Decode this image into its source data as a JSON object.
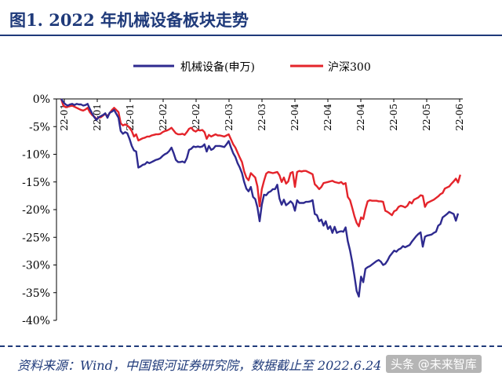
{
  "figure": {
    "title": "图1. 2022 年机械设备板块走势",
    "source": "资料来源：Wind，中国银河证券研究院，数据截止至 2022.6.24",
    "watermark": "头条 @未来智库"
  },
  "colors": {
    "series_machinery": "#2e2a8f",
    "series_hs300": "#e4242b",
    "axis": "#000000",
    "title": "#1f3a7a"
  },
  "chart_data": {
    "type": "line",
    "title": "",
    "xlabel": "",
    "ylabel": "",
    "ylim": [
      -40,
      0
    ],
    "yticks": [
      "0%",
      "-5%",
      "-10%",
      "-15%",
      "-20%",
      "-25%",
      "-30%",
      "-35%",
      "-40%"
    ],
    "ytick_values": [
      0,
      -5,
      -10,
      -15,
      -20,
      -25,
      -30,
      -35,
      -40
    ],
    "xticks": [
      "22-01",
      "22-01",
      "22-01",
      "22-02",
      "22-02",
      "22-03",
      "22-03",
      "22-04",
      "22-04",
      "22-04",
      "22-05",
      "22-05",
      "22-06"
    ],
    "grid": false,
    "legend_position": "top-center",
    "series": [
      {
        "name": "机械设备(申万)",
        "values": [
          0.0,
          -0.6,
          -1.0,
          -1.2,
          -1.0,
          -0.9,
          -1.1,
          -0.9,
          -1.0,
          -1.0,
          -1.2,
          -1.1,
          -0.9,
          -1.8,
          -2.6,
          -3.3,
          -3.8,
          -3.3,
          -3.1,
          -2.9,
          -2.6,
          -3.4,
          -2.5,
          -2.3,
          -2.0,
          -2.7,
          -3.4,
          -5.8,
          -6.3,
          -6.0,
          -6.2,
          -7.2,
          -8.5,
          -9.3,
          -9.5,
          -12.4,
          -12.2,
          -11.9,
          -11.8,
          -11.4,
          -11.6,
          -11.4,
          -11.2,
          -11.0,
          -10.9,
          -10.7,
          -10.3,
          -10.0,
          -9.8,
          -9.4,
          -8.8,
          -9.8,
          -11.0,
          -11.4,
          -11.4,
          -11.3,
          -11.5,
          -10.7,
          -9.2,
          -9.0,
          -8.6,
          -8.7,
          -8.6,
          -8.7,
          -8.6,
          -8.2,
          -9.5,
          -8.5,
          -9.2,
          -9.0,
          -8.5,
          -8.5,
          -8.5,
          -8.6,
          -8.7,
          -8.2,
          -7.6,
          -8.8,
          -9.8,
          -10.5,
          -11.6,
          -12.4,
          -13.4,
          -15.0,
          -16.2,
          -16.7,
          -15.9,
          -17.7,
          -18.1,
          -19.6,
          -22.1,
          -19.1,
          -17.3,
          -17.4,
          -16.9,
          -16.7,
          -16.3,
          -16.3,
          -15.5,
          -18.0,
          -19.1,
          -18.2,
          -19.2,
          -18.9,
          -18.5,
          -18.9,
          -20.2,
          -18.3,
          -18.8,
          -18.8,
          -18.8,
          -18.6,
          -18.6,
          -18.5,
          -18.3,
          -20.8,
          -21.0,
          -22.1,
          -21.8,
          -22.9,
          -22.1,
          -23.5,
          -23.0,
          -24.2,
          -23.1,
          -24.2,
          -24.0,
          -23.9,
          -24.0,
          -23.2,
          -25.7,
          -27.4,
          -29.5,
          -32.0,
          -34.7,
          -35.7,
          -32.1,
          -33.1,
          -30.7,
          -30.4,
          -30.2,
          -29.9,
          -29.6,
          -29.3,
          -29.1,
          -29.4,
          -30.0,
          -29.8,
          -29.2,
          -28.4,
          -27.9,
          -27.4,
          -27.6,
          -27.2,
          -27.0,
          -26.6,
          -26.8,
          -26.6,
          -26.4,
          -25.8,
          -25.3,
          -24.8,
          -24.4,
          -24.1,
          -26.7,
          -24.9,
          -24.7,
          -24.6,
          -24.5,
          -24.2,
          -24.0,
          -22.9,
          -22.6,
          -21.4,
          -21.1,
          -20.8,
          -20.4,
          -20.6,
          -20.8,
          -22.0,
          -20.7
        ]
      },
      {
        "name": "沪深300",
        "values": [
          0.0,
          -1.2,
          -1.5,
          -1.4,
          -1.3,
          -1.2,
          -1.4,
          -1.6,
          -1.8,
          -2.0,
          -2.1,
          -1.9,
          -1.6,
          -2.4,
          -2.9,
          -3.2,
          -3.6,
          -3.4,
          -3.3,
          -3.0,
          -2.7,
          -3.1,
          -2.6,
          -2.0,
          -1.6,
          -2.0,
          -2.4,
          -4.4,
          -4.8,
          -4.6,
          -4.8,
          -5.2,
          -5.8,
          -6.8,
          -6.4,
          -7.5,
          -7.3,
          -7.1,
          -7.0,
          -6.8,
          -6.8,
          -6.6,
          -6.5,
          -6.4,
          -6.4,
          -6.3,
          -6.0,
          -5.8,
          -5.7,
          -5.5,
          -5.2,
          -5.7,
          -6.2,
          -6.4,
          -6.4,
          -6.3,
          -6.5,
          -6.0,
          -5.4,
          -5.2,
          -5.7,
          -5.9,
          -5.6,
          -5.7,
          -5.6,
          -6.0,
          -7.2,
          -6.5,
          -6.8,
          -6.6,
          -6.4,
          -6.6,
          -6.6,
          -6.7,
          -6.8,
          -6.6,
          -6.4,
          -7.3,
          -8.2,
          -8.8,
          -9.7,
          -10.6,
          -11.4,
          -13.1,
          -14.2,
          -14.7,
          -13.4,
          -13.8,
          -14.2,
          -15.8,
          -19.4,
          -16.3,
          -14.8,
          -13.5,
          -13.2,
          -13.3,
          -13.4,
          -13.3,
          -13.2,
          -13.8,
          -15.0,
          -14.2,
          -15.3,
          -14.9,
          -13.4,
          -13.2,
          -15.9,
          -13.2,
          -13.0,
          -13.1,
          -13.0,
          -13.0,
          -13.2,
          -13.4,
          -13.6,
          -15.4,
          -15.8,
          -16.3,
          -15.9,
          -15.2,
          -15.1,
          -15.0,
          -14.9,
          -14.8,
          -15.0,
          -15.1,
          -15.2,
          -15.0,
          -15.4,
          -15.2,
          -17.7,
          -18.3,
          -19.7,
          -21.2,
          -22.4,
          -23.0,
          -21.4,
          -21.7,
          -19.9,
          -18.5,
          -18.3,
          -18.4,
          -18.4,
          -18.4,
          -18.5,
          -18.5,
          -18.6,
          -20.2,
          -20.4,
          -20.7,
          -21.0,
          -20.3,
          -20.1,
          -19.5,
          -19.3,
          -19.4,
          -19.6,
          -19.3,
          -18.6,
          -18.9,
          -18.2,
          -18.0,
          -17.8,
          -17.4,
          -17.5,
          -19.5,
          -18.8,
          -18.6,
          -18.4,
          -18.2,
          -17.9,
          -17.6,
          -17.2,
          -17.0,
          -16.2,
          -16.0,
          -15.8,
          -15.3,
          -14.9,
          -14.4,
          -15.1,
          -13.7
        ]
      }
    ]
  }
}
